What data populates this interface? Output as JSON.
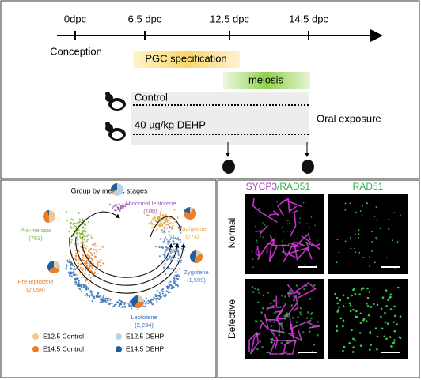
{
  "timeline": {
    "ticks": [
      "0dpc",
      "6.5 dpc",
      "12.5 dpc",
      "14.5 dpc"
    ],
    "start_label": "Conception",
    "phases": [
      "PGC specification",
      "meiosis"
    ],
    "groups": [
      "Control",
      "40 µg/kg DEHP"
    ],
    "exposure": "Oral exposure"
  },
  "umap": {
    "title": "Group by meiotic stages",
    "stages": [
      {
        "name": "Pre-meiosis",
        "count": "(793)",
        "color": "#7cb83a",
        "shares": [
          45,
          5,
          45,
          5
        ]
      },
      {
        "name": "Abnormal leptotene",
        "count": "(190)",
        "color": "#9b59b6",
        "shares": [
          5,
          60,
          5,
          30
        ]
      },
      {
        "name": "Pachytene",
        "count": "(774)",
        "color": "#e5a53a",
        "shares": [
          5,
          5,
          70,
          20
        ]
      },
      {
        "name": "Zygotene",
        "count": "(1,599)",
        "color": "#4a7fc1",
        "shares": [
          5,
          10,
          40,
          45
        ]
      },
      {
        "name": "Pre-leptotene",
        "count": "(2,064)",
        "color": "#ee7d24",
        "shares": [
          15,
          15,
          35,
          35
        ]
      },
      {
        "name": "Leptotene",
        "count": "(2,234)",
        "color": "#2f6db5",
        "shares": [
          10,
          15,
          35,
          40
        ]
      }
    ],
    "legend": [
      {
        "name": "E12.5 Control",
        "color": "#f6c58f"
      },
      {
        "name": "E12.5 DEHP",
        "color": "#b7d3ea"
      },
      {
        "name": "E14.5 Control",
        "color": "#ee7d24"
      },
      {
        "name": "E14.5 DEHP",
        "color": "#1f5f9e"
      }
    ]
  },
  "images": {
    "merge_channels": [
      "SYCP3",
      "/RAD51"
    ],
    "single_channel": "RAD51",
    "rows": [
      "Normal",
      "Defective"
    ]
  }
}
